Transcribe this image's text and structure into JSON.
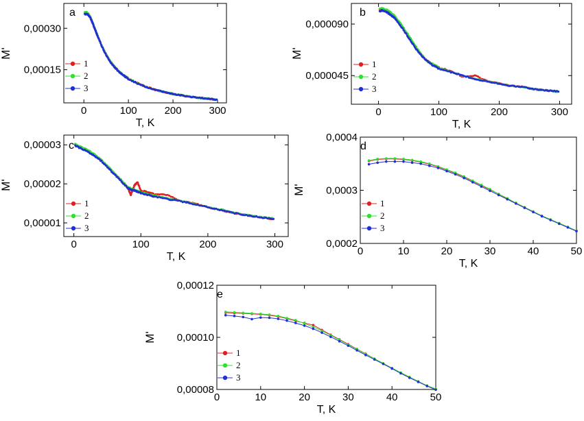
{
  "colors": {
    "series1": "#e02020",
    "series2": "#30e030",
    "series3": "#2030d0",
    "axis": "#000000"
  },
  "chart_data": [
    {
      "panel": "a",
      "type": "line",
      "style": "dense",
      "xlabel": "T, K",
      "ylabel": "M'",
      "xlim": [
        -45,
        320
      ],
      "ylim": [
        3e-05,
        0.00039
      ],
      "xticks": [
        0,
        100,
        200,
        300
      ],
      "xtick_labels": [
        "0",
        "100",
        "200",
        "300"
      ],
      "yticks": [
        0.00015,
        0.0003
      ],
      "ytick_labels": [
        "0,00015",
        "0,00030"
      ],
      "legend": [
        "1",
        "2",
        "3"
      ],
      "x": [
        2,
        5,
        10,
        15,
        20,
        25,
        30,
        40,
        50,
        60,
        70,
        80,
        90,
        100,
        120,
        140,
        160,
        180,
        200,
        220,
        240,
        260,
        280,
        298
      ],
      "series": [
        {
          "name": "1",
          "values": [
            0.000355,
            0.000357,
            0.000352,
            0.000338,
            0.000318,
            0.000297,
            0.000276,
            0.000237,
            0.000204,
            0.000178,
            0.000158,
            0.000142,
            0.000129,
            0.000118,
            0.000101,
            8.8e-05,
            7.7e-05,
            6.9e-05,
            6.2e-05,
            5.7e-05,
            5.2e-05,
            4.8e-05,
            4.5e-05,
            4.2e-05
          ]
        },
        {
          "name": "2",
          "values": [
            0.000357,
            0.000359,
            0.000353,
            0.000339,
            0.000319,
            0.000298,
            0.000277,
            0.000238,
            0.000205,
            0.000179,
            0.000158,
            0.000142,
            0.000129,
            0.000118,
            0.000101,
            8.8e-05,
            7.7e-05,
            6.9e-05,
            6.2e-05,
            5.7e-05,
            5.2e-05,
            4.8e-05,
            4.5e-05,
            4.2e-05
          ]
        },
        {
          "name": "3",
          "values": [
            0.00035,
            0.000353,
            0.000349,
            0.000336,
            0.000317,
            0.000296,
            0.000275,
            0.000236,
            0.000203,
            0.000177,
            0.000157,
            0.000141,
            0.000128,
            0.000117,
            0.0001,
            8.7e-05,
            7.7e-05,
            6.9e-05,
            6.2e-05,
            5.7e-05,
            5.2e-05,
            4.8e-05,
            4.5e-05,
            4.2e-05
          ]
        }
      ]
    },
    {
      "panel": "b",
      "type": "line",
      "style": "dense",
      "xlabel": "T, K",
      "ylabel": "M'",
      "xlim": [
        -45,
        320
      ],
      "ylim": [
        2e-05,
        0.000108
      ],
      "xticks": [
        0,
        100,
        200,
        300
      ],
      "xtick_labels": [
        "0",
        "100",
        "200",
        "300"
      ],
      "yticks": [
        4.5e-05,
        9e-05
      ],
      "ytick_labels": [
        "0,000045",
        "0,000090"
      ],
      "legend": [
        "1",
        "2",
        "3"
      ],
      "x": [
        2,
        5,
        10,
        15,
        20,
        25,
        30,
        40,
        50,
        60,
        70,
        80,
        90,
        100,
        120,
        140,
        160,
        180,
        200,
        220,
        240,
        260,
        280,
        298
      ],
      "series": [
        {
          "name": "1",
          "values": [
            0.000102,
            0.000103,
            0.000102,
            0.000101,
            9.9e-05,
            9.7e-05,
            9.4e-05,
            8.7e-05,
            7.9e-05,
            7.1e-05,
            6.4e-05,
            5.8e-05,
            5.5e-05,
            5.2e-05,
            4.9e-05,
            4.4e-05,
            4.5e-05,
            4e-05,
            3.8e-05,
            3.6e-05,
            3.5e-05,
            3.3e-05,
            3.2e-05,
            3.1e-05
          ]
        },
        {
          "name": "2",
          "values": [
            0.000103,
            0.000104,
            0.000103,
            0.000102,
            0.0001,
            9.8e-05,
            9.5e-05,
            8.8e-05,
            8e-05,
            7.2e-05,
            6.4e-05,
            5.8e-05,
            5.5e-05,
            5.2e-05,
            4.8e-05,
            4.5e-05,
            4.2e-05,
            4e-05,
            3.8e-05,
            3.6e-05,
            3.5e-05,
            3.3e-05,
            3.2e-05,
            3.1e-05
          ]
        },
        {
          "name": "3",
          "values": [
            0.000101,
            0.000102,
            0.000101,
            0.0001,
            9.8e-05,
            9.6e-05,
            9.3e-05,
            8.6e-05,
            7.8e-05,
            7e-05,
            6.3e-05,
            5.8e-05,
            5.4e-05,
            5.1e-05,
            4.8e-05,
            4.5e-05,
            4.2e-05,
            4e-05,
            3.8e-05,
            3.6e-05,
            3.5e-05,
            3.3e-05,
            3.2e-05,
            3.1e-05
          ]
        }
      ]
    },
    {
      "panel": "c",
      "type": "line",
      "style": "dense",
      "xlabel": "T, K",
      "ylabel": "M'",
      "xlim": [
        -15,
        320
      ],
      "ylim": [
        6.5e-06,
        3.25e-05
      ],
      "xticks": [
        0,
        100,
        200,
        300
      ],
      "xtick_labels": [
        "0",
        "100",
        "200",
        "300"
      ],
      "yticks": [
        1e-05,
        2e-05,
        3e-05
      ],
      "ytick_labels": [
        "0,00001",
        "0,00002",
        "0,00003"
      ],
      "legend": [
        "1",
        "2",
        "3"
      ],
      "x": [
        2,
        10,
        20,
        30,
        40,
        50,
        60,
        70,
        80,
        85,
        90,
        95,
        100,
        110,
        120,
        140,
        160,
        180,
        200,
        220,
        240,
        260,
        280,
        298
      ],
      "series": [
        {
          "name": "1",
          "values": [
            3e-05,
            2.93e-05,
            2.85e-05,
            2.75e-05,
            2.62e-05,
            2.45e-05,
            2.27e-05,
            2.1e-05,
            1.92e-05,
            1.72e-05,
            1.95e-05,
            2.05e-05,
            1.82e-05,
            1.8e-05,
            1.73e-05,
            1.72e-05,
            1.55e-05,
            1.5e-05,
            1.4e-05,
            1.32e-05,
            1.25e-05,
            1.19e-05,
            1.14e-05,
            1.1e-05
          ]
        },
        {
          "name": "2",
          "values": [
            3.02e-05,
            2.95e-05,
            2.87e-05,
            2.76e-05,
            2.63e-05,
            2.46e-05,
            2.28e-05,
            2.11e-05,
            1.93e-05,
            1.88e-05,
            1.85e-05,
            1.82e-05,
            1.78e-05,
            1.74e-05,
            1.7e-05,
            1.63e-05,
            1.57e-05,
            1.49e-05,
            1.41e-05,
            1.34e-05,
            1.26e-05,
            1.2e-05,
            1.15e-05,
            1.11e-05
          ]
        },
        {
          "name": "3",
          "values": [
            2.98e-05,
            2.91e-05,
            2.83e-05,
            2.73e-05,
            2.6e-05,
            2.43e-05,
            2.25e-05,
            2.08e-05,
            1.9e-05,
            1.85e-05,
            1.83e-05,
            1.8e-05,
            1.76e-05,
            1.72e-05,
            1.68e-05,
            1.61e-05,
            1.55e-05,
            1.48e-05,
            1.4e-05,
            1.33e-05,
            1.25e-05,
            1.19e-05,
            1.14e-05,
            1.1e-05
          ]
        }
      ]
    },
    {
      "panel": "d",
      "type": "line",
      "style": "markers",
      "xlabel": "T, K",
      "ylabel": "M'",
      "xlim": [
        0,
        50
      ],
      "ylim": [
        0.0002,
        0.0004
      ],
      "xticks": [
        0,
        10,
        20,
        30,
        40,
        50
      ],
      "xtick_labels": [
        "0",
        "10",
        "20",
        "30",
        "40",
        "50"
      ],
      "yticks": [
        0.0002,
        0.0003,
        0.0004
      ],
      "ytick_labels": [
        "0,0002",
        "0,0003",
        "0,0004"
      ],
      "legend": [
        "1",
        "2",
        "3"
      ],
      "x": [
        2,
        4,
        6,
        8,
        10,
        12,
        14,
        16,
        18,
        20,
        22,
        24,
        26,
        28,
        30,
        32,
        34,
        36,
        38,
        40,
        42,
        44,
        46,
        48,
        50
      ],
      "series": [
        {
          "name": "1",
          "values": [
            0.000355,
            0.000358,
            0.000359,
            0.000359,
            0.000358,
            0.000356,
            0.000353,
            0.000349,
            0.000344,
            0.000338,
            0.000332,
            0.000325,
            0.000317,
            0.000309,
            0.000301,
            0.000293,
            0.000284,
            0.000276,
            0.000268,
            0.00026,
            0.000252,
            0.000245,
            0.000238,
            0.000231,
            0.000224
          ]
        },
        {
          "name": "2",
          "values": [
            0.000356,
            0.000359,
            0.00036,
            0.00036,
            0.000359,
            0.000357,
            0.000354,
            0.00035,
            0.000345,
            0.000339,
            0.000333,
            0.000326,
            0.000318,
            0.00031,
            0.000302,
            0.000293,
            0.000285,
            0.000276,
            0.000268,
            0.00026,
            0.000252,
            0.000245,
            0.000238,
            0.000231,
            0.000224
          ]
        },
        {
          "name": "3",
          "values": [
            0.000349,
            0.000352,
            0.000354,
            0.000354,
            0.000354,
            0.000352,
            0.00035,
            0.000346,
            0.000342,
            0.000336,
            0.00033,
            0.000323,
            0.000315,
            0.000307,
            0.000299,
            0.000291,
            0.000283,
            0.000275,
            0.000267,
            0.000259,
            0.000251,
            0.000244,
            0.000237,
            0.00023,
            0.000223
          ]
        }
      ]
    },
    {
      "panel": "e",
      "type": "line",
      "style": "markers",
      "xlabel": "T, K",
      "ylabel": "M'",
      "xlim": [
        0,
        50
      ],
      "ylim": [
        8e-05,
        0.00012
      ],
      "xticks": [
        0,
        10,
        20,
        30,
        40,
        50
      ],
      "xtick_labels": [
        "0",
        "10",
        "20",
        "30",
        "40",
        "50"
      ],
      "yticks": [
        8e-05,
        0.0001,
        0.00012
      ],
      "ytick_labels": [
        "0,00008",
        "0,00010",
        "0,00012"
      ],
      "legend": [
        "1",
        "2",
        "3"
      ],
      "x": [
        2,
        4,
        6,
        8,
        10,
        12,
        14,
        16,
        18,
        20,
        22,
        24,
        26,
        28,
        30,
        32,
        34,
        36,
        38,
        40,
        42,
        44,
        46,
        48,
        50
      ],
      "series": [
        {
          "name": "1",
          "values": [
            0.0001095,
            0.0001093,
            0.0001092,
            0.000109,
            0.0001088,
            0.0001085,
            0.000108,
            0.0001072,
            0.0001063,
            0.0001055,
            0.0001047,
            0.0001028,
            0.000101,
            9.92e-05,
            9.74e-05,
            9.55e-05,
            9.37e-05,
            9.18e-05,
            9e-05,
            8.82e-05,
            8.64e-05,
            8.47e-05,
            8.3e-05,
            8.14e-05,
            8e-05
          ]
        },
        {
          "name": "2",
          "values": [
            0.0001098,
            0.0001096,
            0.0001094,
            0.0001092,
            0.000109,
            0.0001087,
            0.0001082,
            0.0001074,
            0.0001066,
            0.0001053,
            0.000104,
            0.0001025,
            0.0001008,
            9.9e-05,
            9.72e-05,
            9.54e-05,
            9.36e-05,
            9.18e-05,
            9e-05,
            8.82e-05,
            8.65e-05,
            8.48e-05,
            8.31e-05,
            8.15e-05,
            8.02e-05
          ]
        },
        {
          "name": "3",
          "values": [
            0.0001085,
            0.0001082,
            0.0001078,
            0.000107,
            0.0001076,
            0.0001075,
            0.0001071,
            0.0001064,
            0.0001055,
            0.0001045,
            0.0001033,
            0.0001018,
            0.0001002,
            9.85e-05,
            9.68e-05,
            9.5e-05,
            9.32e-05,
            9.15e-05,
            8.98e-05,
            8.8e-05,
            8.62e-05,
            8.45e-05,
            8.29e-05,
            8.13e-05,
            7.99e-05
          ]
        }
      ]
    }
  ]
}
